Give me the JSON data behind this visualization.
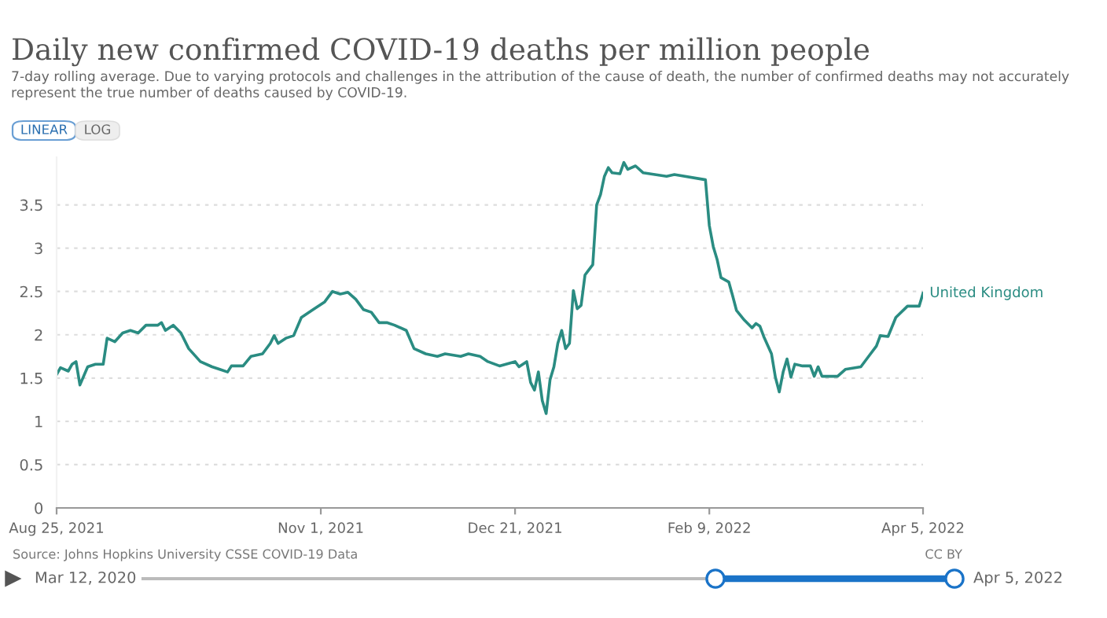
{
  "chart_data": {
    "type": "line",
    "title": "Daily new confirmed COVID-19 deaths per million people",
    "subtitle": "7-day rolling average. Due to varying protocols and challenges in the attribution of the cause of death, the number of confirmed deaths may not accurately\nrepresent the true number of deaths caused by COVID-19.",
    "annotations": [
      "LINEAR",
      "LOG",
      "Source: Johns Hopkins University CSSE COVID-19 Data",
      "CC BY",
      "Mar 12, 2020",
      "Apr 5, 2022"
    ],
    "x": [
      "2021-08-25",
      "2021-08-26",
      "2021-08-28",
      "2021-08-29",
      "2021-08-30",
      "2021-08-31",
      "2021-09-02",
      "2021-09-04",
      "2021-09-06",
      "2021-09-07",
      "2021-09-09",
      "2021-09-11",
      "2021-09-13",
      "2021-09-15",
      "2021-09-17",
      "2021-09-20",
      "2021-09-21",
      "2021-09-22",
      "2021-09-24",
      "2021-09-26",
      "2021-09-28",
      "2021-10-01",
      "2021-10-04",
      "2021-10-06",
      "2021-10-08",
      "2021-10-09",
      "2021-10-12",
      "2021-10-14",
      "2021-10-17",
      "2021-10-19",
      "2021-10-20",
      "2021-10-21",
      "2021-10-23",
      "2021-10-25",
      "2021-10-27",
      "2021-10-30",
      "2021-11-02",
      "2021-11-04",
      "2021-11-06",
      "2021-11-08",
      "2021-11-10",
      "2021-11-12",
      "2021-11-14",
      "2021-11-16",
      "2021-11-18",
      "2021-11-20",
      "2021-11-23",
      "2021-11-25",
      "2021-11-28",
      "2021-12-01",
      "2021-12-03",
      "2021-12-07",
      "2021-12-09",
      "2021-12-12",
      "2021-12-14",
      "2021-12-17",
      "2021-12-21",
      "2021-12-22",
      "2021-12-24",
      "2021-12-25",
      "2021-12-26",
      "2021-12-27",
      "2021-12-28",
      "2021-12-29",
      "2021-12-30",
      "2021-12-31",
      "2022-01-01",
      "2022-01-02",
      "2022-01-03",
      "2022-01-04",
      "2022-01-05",
      "2022-01-06",
      "2022-01-07",
      "2022-01-08",
      "2022-01-09",
      "2022-01-10",
      "2022-01-11",
      "2022-01-12",
      "2022-01-13",
      "2022-01-14",
      "2022-01-15",
      "2022-01-17",
      "2022-01-18",
      "2022-01-19",
      "2022-01-21",
      "2022-01-23",
      "2022-01-26",
      "2022-01-29",
      "2022-01-31",
      "2022-02-08",
      "2022-02-09",
      "2022-02-10",
      "2022-02-11",
      "2022-02-12",
      "2022-02-14",
      "2022-02-15",
      "2022-02-16",
      "2022-02-18",
      "2022-02-20",
      "2022-02-21",
      "2022-02-22",
      "2022-02-23",
      "2022-02-25",
      "2022-02-26",
      "2022-02-27",
      "2022-02-28",
      "2022-03-01",
      "2022-03-02",
      "2022-03-03",
      "2022-03-05",
      "2022-03-07",
      "2022-03-08",
      "2022-03-09",
      "2022-03-10",
      "2022-03-14",
      "2022-03-16",
      "2022-03-20",
      "2022-03-22",
      "2022-03-24",
      "2022-03-25",
      "2022-03-27",
      "2022-03-29",
      "2022-04-01",
      "2022-04-04",
      "2022-04-05"
    ],
    "series": [
      {
        "name": "United Kingdom",
        "color": "#2a8c82",
        "values": [
          1.54,
          1.62,
          1.58,
          1.66,
          1.69,
          1.42,
          1.63,
          1.66,
          1.66,
          1.96,
          1.92,
          2.02,
          2.05,
          2.02,
          2.11,
          2.11,
          2.14,
          2.05,
          2.11,
          2.02,
          1.84,
          1.69,
          1.63,
          1.6,
          1.57,
          1.64,
          1.64,
          1.75,
          1.78,
          1.9,
          1.99,
          1.9,
          1.96,
          1.99,
          2.2,
          2.29,
          2.38,
          2.5,
          2.47,
          2.49,
          2.41,
          2.29,
          2.26,
          2.14,
          2.14,
          2.11,
          2.05,
          1.84,
          1.78,
          1.75,
          1.78,
          1.75,
          1.78,
          1.75,
          1.69,
          1.64,
          1.69,
          1.63,
          1.69,
          1.45,
          1.36,
          1.57,
          1.24,
          1.09,
          1.48,
          1.63,
          1.9,
          2.05,
          1.84,
          1.9,
          2.51,
          2.3,
          2.34,
          2.69,
          2.75,
          2.81,
          3.5,
          3.62,
          3.83,
          3.93,
          3.87,
          3.86,
          3.99,
          3.91,
          3.95,
          3.87,
          3.85,
          3.83,
          3.85,
          3.79,
          3.26,
          3.02,
          2.87,
          2.66,
          2.61,
          2.45,
          2.28,
          2.17,
          2.08,
          2.13,
          2.1,
          1.98,
          1.78,
          1.51,
          1.34,
          1.57,
          1.72,
          1.51,
          1.66,
          1.64,
          1.64,
          1.52,
          1.63,
          1.52,
          1.52,
          1.6,
          1.63,
          1.75,
          1.87,
          1.99,
          1.98,
          2.2,
          2.33,
          2.33,
          2.48
        ]
      }
    ],
    "xlim": [
      "2021-08-25",
      "2022-04-05"
    ],
    "xticks": [
      {
        "value": "2021-08-25",
        "label": "Aug 25, 2021"
      },
      {
        "value": "2021-11-01",
        "label": "Nov 1, 2021"
      },
      {
        "value": "2021-12-21",
        "label": "Dec 21, 2021"
      },
      {
        "value": "2022-02-09",
        "label": "Feb 9, 2022"
      },
      {
        "value": "2022-04-05",
        "label": "Apr 5, 2022"
      }
    ],
    "ylim": [
      0,
      4.05
    ],
    "yticks": [
      0,
      0.5,
      1,
      1.5,
      2,
      2.5,
      3,
      3.5
    ],
    "grid": "y",
    "line_style": "solid",
    "marker": "none",
    "legend": false
  }
}
